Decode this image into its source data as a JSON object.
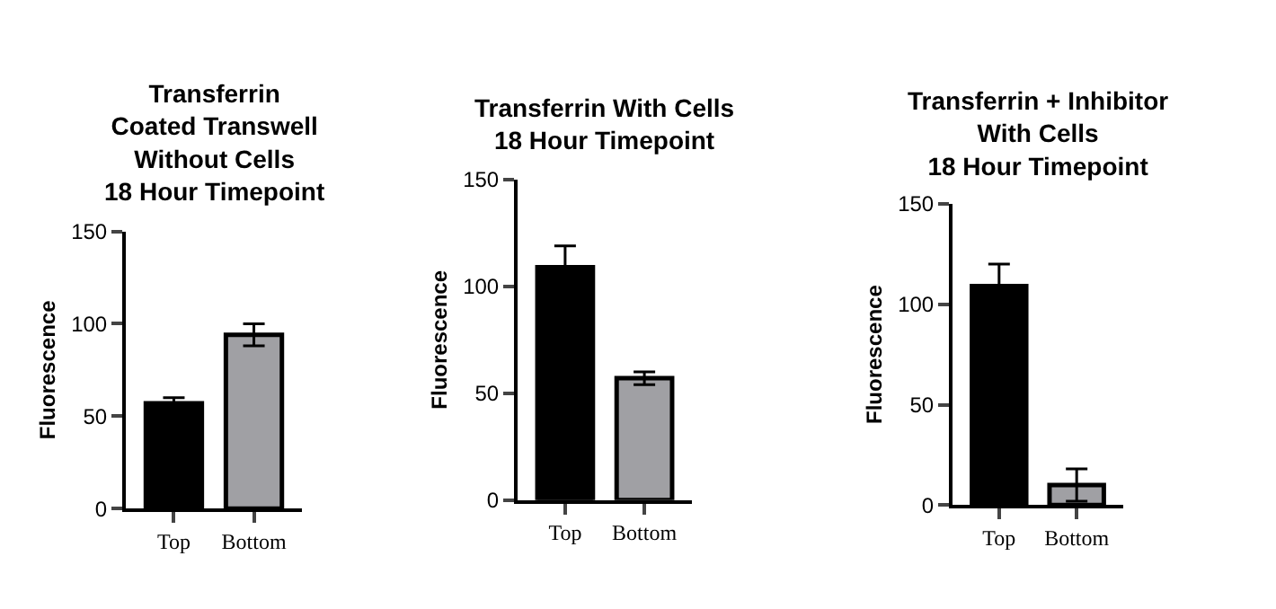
{
  "chart_data": [
    {
      "type": "bar",
      "title": "Transferrin\nCoated Transwell\nWithout Cells\n18 Hour Timepoint",
      "ylabel": "Fluorescence",
      "categories": [
        "Top",
        "Bottom"
      ],
      "values": [
        57,
        94
      ],
      "errors": [
        3,
        6
      ],
      "colors": [
        "#000000",
        "#a0a0a4"
      ],
      "ylim": [
        0,
        150
      ],
      "yticks": [
        0,
        50,
        100,
        150
      ]
    },
    {
      "type": "bar",
      "title": "Transferrin With Cells\n18 Hour Timepoint",
      "ylabel": "Fluorescence",
      "categories": [
        "Top",
        "Bottom"
      ],
      "values": [
        109,
        57
      ],
      "errors": [
        10,
        3
      ],
      "colors": [
        "#000000",
        "#a0a0a4"
      ],
      "ylim": [
        0,
        150
      ],
      "yticks": [
        0,
        50,
        100,
        150
      ]
    },
    {
      "type": "bar",
      "title": "Transferrin + Inhibitor\nWith Cells\n18 Hour Timepoint",
      "ylabel": "Fluorescence",
      "categories": [
        "Top",
        "Bottom"
      ],
      "values": [
        109,
        10
      ],
      "errors": [
        11,
        8
      ],
      "colors": [
        "#000000",
        "#a0a0a4"
      ],
      "ylim": [
        0,
        150
      ],
      "yticks": [
        0,
        50,
        100,
        150
      ]
    }
  ]
}
